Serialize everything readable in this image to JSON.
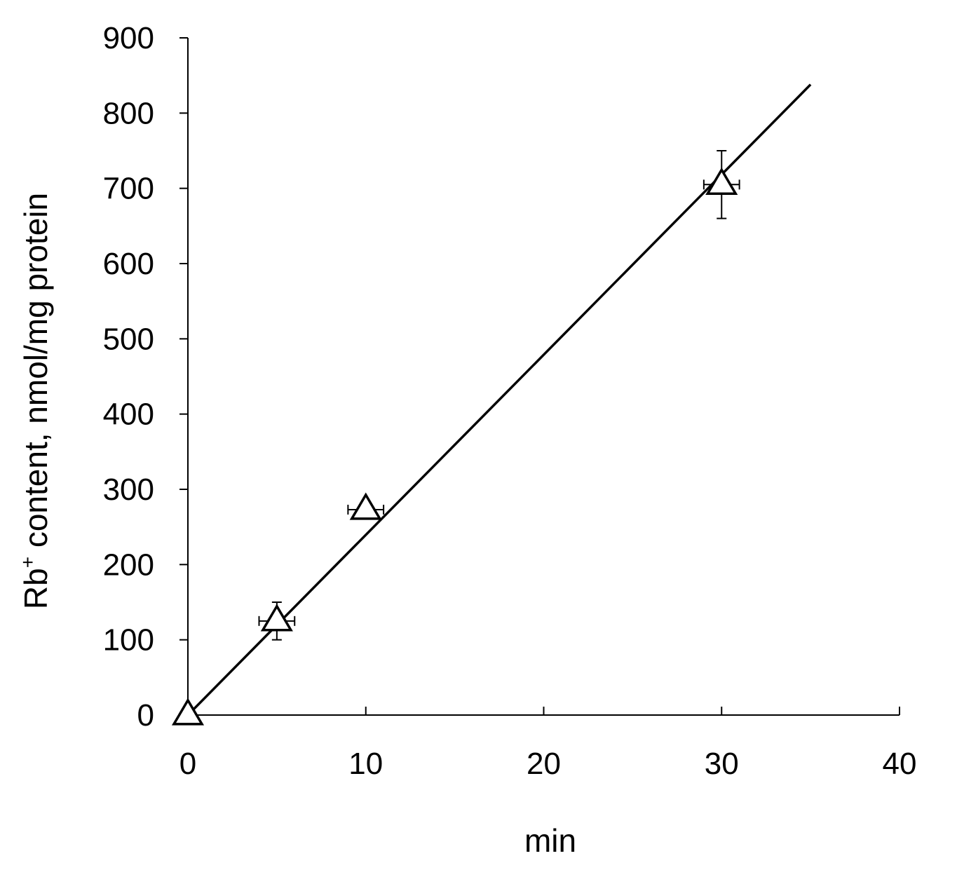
{
  "chart_data": {
    "type": "scatter",
    "xlabel": "min",
    "ylabel_parts": {
      "base": "Rb",
      "superscript": "+",
      "rest": " content, nmol/mg protein"
    },
    "xlim": [
      0,
      40
    ],
    "ylim": [
      0,
      900
    ],
    "xticks": [
      0,
      10,
      20,
      30,
      40
    ],
    "yticks": [
      0,
      100,
      200,
      300,
      400,
      500,
      600,
      700,
      800,
      900
    ],
    "grid": false,
    "marker": "open-triangle",
    "series": [
      {
        "points": [
          {
            "x": 0,
            "y": 0,
            "y_err": 0,
            "x_err": 0
          },
          {
            "x": 5,
            "y": 125,
            "y_err": 25,
            "x_err": 1
          },
          {
            "x": 10,
            "y": 273,
            "y_err": 5,
            "x_err": 1
          },
          {
            "x": 30,
            "y": 705,
            "y_err": 45,
            "x_err": 1
          }
        ]
      }
    ],
    "fit_line": {
      "x": [
        0,
        35
      ],
      "y": [
        0,
        838
      ]
    }
  }
}
